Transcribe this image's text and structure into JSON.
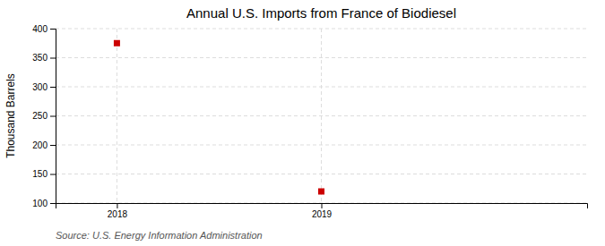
{
  "chart_data": {
    "type": "scatter",
    "title": "Annual U.S. Imports from France of Biodiesel",
    "ylabel": "Thousand Barrels",
    "source": "Source: U.S. Energy Information Administration",
    "x": [
      2018,
      2019
    ],
    "values": [
      375,
      120
    ],
    "color": "#cc0000",
    "marker": "square",
    "xlim": [
      2017.7,
      2020.3
    ],
    "xticks": [
      2018,
      2019
    ],
    "ylim": [
      100,
      400
    ],
    "yticks": [
      100,
      150,
      200,
      250,
      300,
      350,
      400
    ],
    "grid": true
  }
}
